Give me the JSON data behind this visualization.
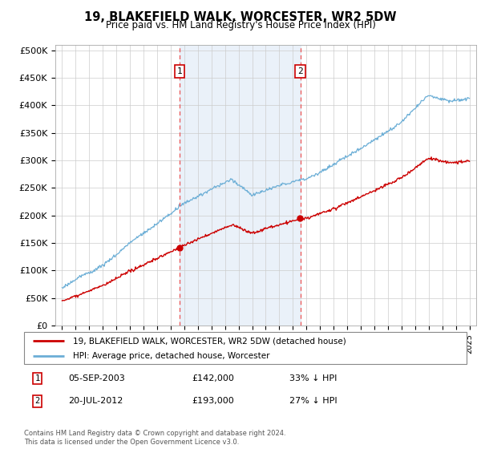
{
  "title": "19, BLAKEFIELD WALK, WORCESTER, WR2 5DW",
  "subtitle": "Price paid vs. HM Land Registry's House Price Index (HPI)",
  "ylim": [
    0,
    500000
  ],
  "yticks": [
    0,
    50000,
    100000,
    150000,
    200000,
    250000,
    300000,
    350000,
    400000,
    450000,
    500000
  ],
  "ytick_labels": [
    "£0",
    "£50K",
    "£100K",
    "£150K",
    "£200K",
    "£250K",
    "£300K",
    "£350K",
    "£400K",
    "£450K",
    "£500K"
  ],
  "hpi_color": "#6baed6",
  "price_color": "#cc0000",
  "sale1_date": "05-SEP-2003",
  "sale1_price": 142000,
  "sale1_discount": "33% ↓ HPI",
  "sale2_date": "20-JUL-2012",
  "sale2_price": 193000,
  "sale2_discount": "27% ↓ HPI",
  "legend_label1": "19, BLAKEFIELD WALK, WORCESTER, WR2 5DW (detached house)",
  "legend_label2": "HPI: Average price, detached house, Worcester",
  "footer": "Contains HM Land Registry data © Crown copyright and database right 2024.\nThis data is licensed under the Open Government Licence v3.0.",
  "sale1_x": 2003.67,
  "sale2_x": 2012.54,
  "xlim_left": 1994.5,
  "xlim_right": 2025.5,
  "marker_y": 462000,
  "span_color": "#dce9f5",
  "span_alpha": 0.6,
  "vline_color": "#ee4444",
  "grid_color": "#cccccc"
}
